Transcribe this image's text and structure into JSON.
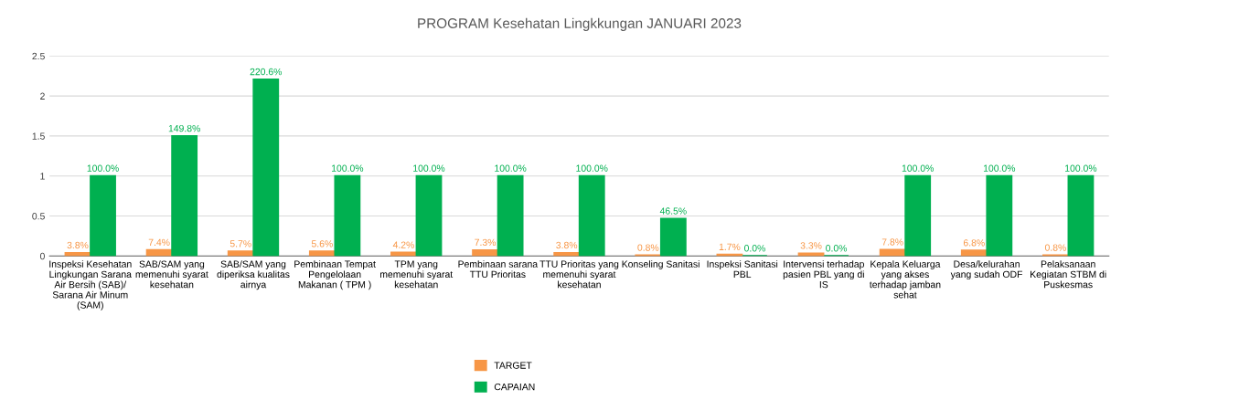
{
  "chart_data": {
    "type": "bar",
    "title": "PROGRAM Kesehatan Lingkkungan JANUARI 2023",
    "categories": [
      "Inspeksi Kesehatan\nLingkungan Sarana\nAir Bersih (SAB)/\nSarana Air Minum\n(SAM)",
      "SAB/SAM yang\nmemenuhi syarat\nkesehatan",
      "SAB/SAM yang\ndiperiksa kualitas\nairnya",
      "Pembinaan Tempat\nPengelolaan\nMakanan ( TPM )",
      "TPM yang\nmemenuhi syarat\nkesehatan",
      "Pembinaan sarana\nTTU Prioritas",
      "TTU Prioritas yang\nmemenuhi syarat\nkesehatan",
      "Konseling Sanitasi",
      "Inspeksi Sanitasi\nPBL",
      "Intervensi terhadap\npasien PBL yang di\nIS",
      "Kepala Keluarga\nyang akses\nterhadap jamban\nsehat",
      "Desa/kelurahan\nyang sudah ODF",
      "Pelaksanaan\nKegiatan STBM di\nPuskesmas"
    ],
    "series": [
      {
        "name": "TARGET",
        "color": "#f79646",
        "values": [
          0.038,
          0.074,
          0.057,
          0.056,
          0.042,
          0.073,
          0.038,
          0.008,
          0.017,
          0.033,
          0.078,
          0.068,
          0.008
        ],
        "value_labels": [
          "3.8%",
          "7.4%",
          "5.7%",
          "5.6%",
          "4.2%",
          "7.3%",
          "3.8%",
          "0.8%",
          "1.7%",
          "3.3%",
          "7.8%",
          "6.8%",
          "0.8%"
        ]
      },
      {
        "name": "CAPAIAN",
        "color": "#00b050",
        "values": [
          1.0,
          1.498,
          2.206,
          1.0,
          1.0,
          1.0,
          1.0,
          0.465,
          0.0,
          0.0,
          1.0,
          1.0,
          1.0
        ],
        "value_labels": [
          "100.0%",
          "149.8%",
          "220.6%",
          "100.0%",
          "100.0%",
          "100.0%",
          "100.0%",
          "46.5%",
          "0.0%",
          "0.0%",
          "100.0%",
          "100.0%",
          "100.0%"
        ]
      }
    ],
    "ylim": [
      0,
      2.5
    ],
    "yticks": [
      0,
      0.5,
      1,
      1.5,
      2,
      2.5
    ],
    "grid": "y",
    "legend": "bottom"
  }
}
